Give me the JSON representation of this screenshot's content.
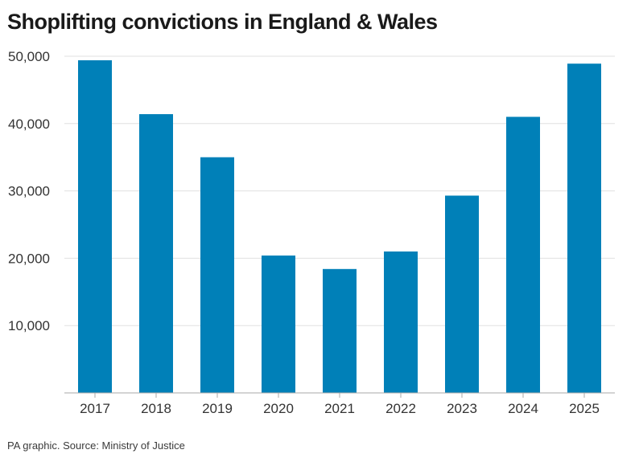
{
  "title": "Shoplifting convictions in England & Wales",
  "source": "PA graphic. Source: Ministry of Justice",
  "colors": {
    "bar": "#0080b8",
    "grid": "#e0e0e0",
    "axis": "#aaaaaa",
    "text": "#333333"
  },
  "chart_data": {
    "type": "bar",
    "title": "Shoplifting convictions in England & Wales",
    "xlabel": "",
    "ylabel": "",
    "categories": [
      "2017",
      "2018",
      "2019",
      "2020",
      "2021",
      "2022",
      "2023",
      "2024",
      "2025"
    ],
    "values": [
      49400,
      41400,
      35000,
      20400,
      18400,
      21000,
      29300,
      41000,
      48900
    ],
    "ylim": [
      0,
      50000
    ],
    "yticks": [
      10000,
      20000,
      30000,
      40000,
      50000
    ],
    "ytick_labels": [
      "10,000",
      "20,000",
      "30,000",
      "40,000",
      "50,000"
    ],
    "grid": true,
    "legend": "none"
  }
}
